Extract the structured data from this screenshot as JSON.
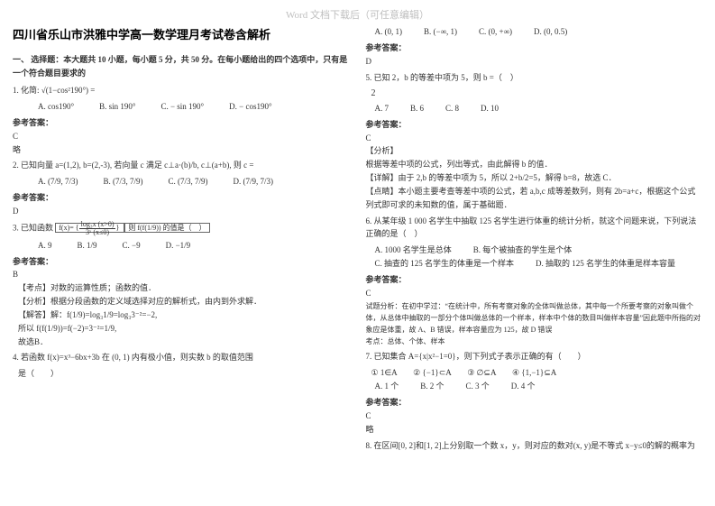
{
  "watermark": "Word 文档下载后（可任意编辑）",
  "left": {
    "title": "四川省乐山市洪雅中学高一数学理月考试卷含解析",
    "section1": "一、 选择题：本大题共 10 小题，每小题 5 分，共 50 分。在每小题给出的四个选项中，只有是一个符合题目要求的",
    "q1": "1. 化简: √(1−cos²190°) =",
    "q1_opts": {
      "a": "A. cos190°",
      "b": "B. sin 190°",
      "c": "C. − sin 190°",
      "d": "D. − cos190°"
    },
    "ans_label": "参考答案：",
    "a1": "C",
    "a1_note": "略",
    "q2_pre": "2. 已知向量 a=(1,2), b=(2,-3), 若向量 c 满足 c⊥a·(b)/b, c⊥(a+b), 则 c =",
    "q2_opts": {
      "a": "A. (7/9, 7/3)",
      "b": "B. (7/3, 7/9)",
      "c": "C. (7/3, 7/9)",
      "d": "D. (7/9, 7/3)"
    },
    "a2": "D",
    "q3_pre": "3. 已知函数",
    "q3_f": "f(x)=",
    "q3_piece1": "log₃x (x>0)",
    "q3_piece2": "3ˣ (x≤0)",
    "q3_tail": "则 f(f(1/9)) 的值是（　）",
    "q3_opts": {
      "a": "A. 9",
      "b": "B. 1/9",
      "c": "C. −9",
      "d": "D. −1/9"
    },
    "a3": "B",
    "a3_l1": "【考点】对数的运算性质；函数的值．",
    "a3_l2": "【分析】根据分段函数的定义域选择对应的解析式，由内到外求解．",
    "a3_l3": "【解答】解：f(1/9)=log₃1/9=log₃3⁻²=−2,",
    "a3_l4": "所以 f(f(1/9))=f(−2)=3⁻²=1/9,",
    "a3_l5": "故选B．",
    "q4": "4. 若函数 f(x)=x³−6bx+3b 在 (0, 1) 内有极小值，则实数 b 的取值范围",
    "q4_tail": "是（　　）"
  },
  "right": {
    "q4_opts": {
      "a": "A. (0, 1)",
      "b": "B. (−∞, 1)",
      "c": "C. (0, +∞)",
      "d": "D. (0, 0.5)"
    },
    "a4": "D",
    "q5": "5. 已知 2，b 的等差中项为 5，则 b =（　）",
    "q5_opts_extra": "2",
    "q5_opts": {
      "a": "A. 7",
      "b": "B. 6",
      "c": "C. 8",
      "d": "D. 10"
    },
    "a5": "C",
    "a5_l0": "【分析】",
    "a5_l1": "根据等差中项的公式，列出等式，由此解得 b 的值．",
    "a5_l2": "【详解】由于 2,b 的等差中项为 5，所以 2+b/2=5，解得 b=8，故选 C．",
    "a5_l3": "【点睛】本小题主要考查等差中项的公式，若 a,b,c 成等差数列，则有 2b=a+c，根据这个公式列式即可求的未知数的值，属于基础题．",
    "q6": "6. 从某年级 1 000 名学生中抽取 125 名学生进行体重的统计分析，就这个问题来说，下列说法正确的是（　）",
    "q6_opts": {
      "a": "A. 1000 名学生是总体",
      "b": "B. 每个被抽查的学生是个体",
      "c": "C. 抽查的 125 名学生的体重是一个样本",
      "d": "D. 抽取的 125 名学生的体重是样本容量"
    },
    "a6": "C",
    "a6_l1": "试题分析：在初中学过：“在统计中，所有考察对象的全体叫做总体，其中每一个所要考察的对象叫做个体，从总体中抽取的一部分个体叫做总体的一个样本，样本中个体的数目叫做样本容量”因此题中所指的对象应是体重，故 A、B 错误，样本容量应为 125，故 D 错误",
    "a6_l2": "考点：总体、个体、样本",
    "q7": "7. 已知集合 A={x|x²−1=0}，则下列式子表示正确的有（　　）",
    "q7_row": "① 1∈A　　② {−1}⊂A　　③ ∅⊆A　　④ {1,−1}⊆A",
    "q7_opts": {
      "a": "A. 1 个",
      "b": "B. 2 个",
      "c": "C. 3 个",
      "d": "D. 4 个"
    },
    "a7": "C",
    "a7_note": "略",
    "q8": "8. 在区间[0, 2]和[1, 2]上分别取一个数 x，y，则对应的数对(x, y)是不等式 x−y≤0的解的概率为"
  }
}
